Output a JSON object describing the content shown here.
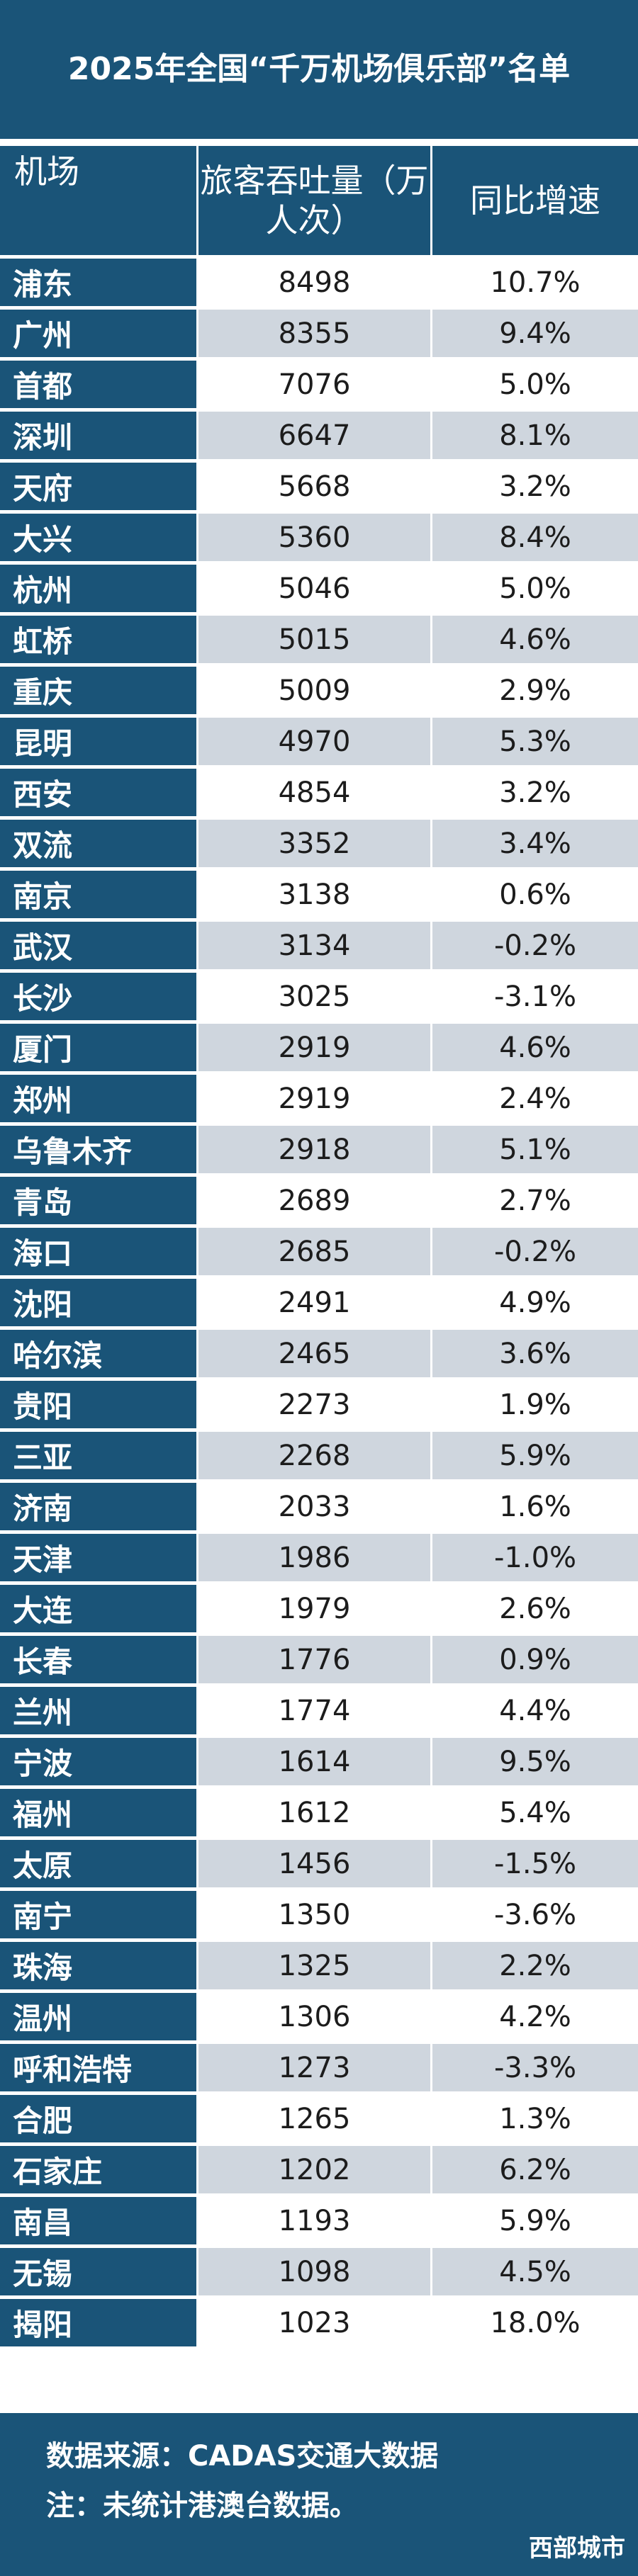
{
  "title": "2025年全国“千万机场俱乐部”名单",
  "headers": [
    "机场",
    "旅客吞吐量（万人次）",
    "同比增速"
  ],
  "rows": [
    {
      "name": "浦东",
      "value": "8498",
      "growth": "10.7%"
    },
    {
      "name": "广州",
      "value": "8355",
      "growth": "9.4%"
    },
    {
      "name": "首都",
      "value": "7076",
      "growth": "5.0%"
    },
    {
      "name": "深圳",
      "value": "6647",
      "growth": "8.1%"
    },
    {
      "name": "天府",
      "value": "5668",
      "growth": "3.2%"
    },
    {
      "name": "大兴",
      "value": "5360",
      "growth": "8.4%"
    },
    {
      "name": "杭州",
      "value": "5046",
      "growth": "5.0%"
    },
    {
      "name": "虹桥",
      "value": "5015",
      "growth": "4.6%"
    },
    {
      "name": "重庆",
      "value": "5009",
      "growth": "2.9%"
    },
    {
      "name": "昆明",
      "value": "4970",
      "growth": "5.3%"
    },
    {
      "name": "西安",
      "value": "4854",
      "growth": "3.2%"
    },
    {
      "name": "双流",
      "value": "3352",
      "growth": "3.4%"
    },
    {
      "name": "南京",
      "value": "3138",
      "growth": "0.6%"
    },
    {
      "name": "武汉",
      "value": "3134",
      "growth": "-0.2%"
    },
    {
      "name": "长沙",
      "value": "3025",
      "growth": "-3.1%"
    },
    {
      "name": "厦门",
      "value": "2919",
      "growth": "4.6%"
    },
    {
      "name": "郑州",
      "value": "2919",
      "growth": "2.4%"
    },
    {
      "name": "乌鲁木齐",
      "value": "2918",
      "growth": "5.1%"
    },
    {
      "name": "青岛",
      "value": "2689",
      "growth": "2.7%"
    },
    {
      "name": "海口",
      "value": "2685",
      "growth": "-0.2%"
    },
    {
      "name": "沈阳",
      "value": "2491",
      "growth": "4.9%"
    },
    {
      "name": "哈尔滨",
      "value": "2465",
      "growth": "3.6%"
    },
    {
      "name": "贵阳",
      "value": "2273",
      "growth": "1.9%"
    },
    {
      "name": "三亚",
      "value": "2268",
      "growth": "5.9%"
    },
    {
      "name": "济南",
      "value": "2033",
      "growth": "1.6%"
    },
    {
      "name": "天津",
      "value": "1986",
      "growth": "-1.0%"
    },
    {
      "name": "大连",
      "value": "1979",
      "growth": "2.6%"
    },
    {
      "name": "长春",
      "value": "1776",
      "growth": "0.9%"
    },
    {
      "name": "兰州",
      "value": "1774",
      "growth": "4.4%"
    },
    {
      "name": "宁波",
      "value": "1614",
      "growth": "9.5%"
    },
    {
      "name": "福州",
      "value": "1612",
      "growth": "5.4%"
    },
    {
      "name": "太原",
      "value": "1456",
      "growth": "-1.5%"
    },
    {
      "name": "南宁",
      "value": "1350",
      "growth": "-3.6%"
    },
    {
      "name": "珠海",
      "value": "1325",
      "growth": "2.2%"
    },
    {
      "name": "温州",
      "value": "1306",
      "growth": "4.2%"
    },
    {
      "name": "呼和浩特",
      "value": "1273",
      "growth": "-3.3%"
    },
    {
      "name": "合肥",
      "value": "1265",
      "growth": "1.3%"
    },
    {
      "name": "石家庄",
      "value": "1202",
      "growth": "6.2%"
    },
    {
      "name": "南昌",
      "value": "1193",
      "growth": "5.9%"
    },
    {
      "name": "无锡",
      "value": "1098",
      "growth": "4.5%"
    },
    {
      "name": "揭阳",
      "value": "1023",
      "growth": "18.0%"
    }
  ],
  "footer": {
    "source": "数据来源：CADAS交通大数据",
    "note": "注：未统计港澳台数据。",
    "brand": "西部城市"
  },
  "colors": {
    "header_bg": "#1a5478",
    "stripe": "#cfd6de",
    "text": "#1c1c1c"
  }
}
